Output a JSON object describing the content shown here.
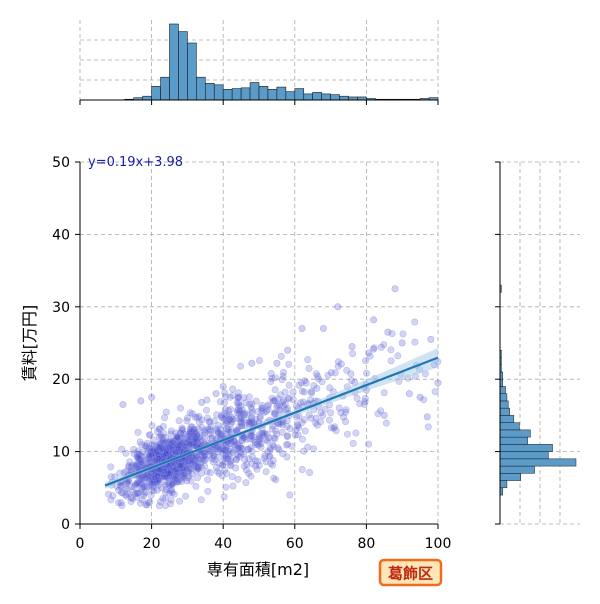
{
  "chart_data": {
    "type": "scatter",
    "xlabel": "専有面積[m2]",
    "ylabel": "賃料[万円]",
    "xlim": [
      0,
      100
    ],
    "ylim": [
      0,
      50
    ],
    "x_ticks": [
      0,
      20,
      40,
      60,
      80,
      100
    ],
    "y_ticks": [
      0,
      10,
      20,
      30,
      40,
      50
    ],
    "grid": true,
    "regression": {
      "label": "y=0.19x+3.98",
      "slope": 0.19,
      "intercept": 3.98,
      "x_range": [
        7,
        100
      ]
    },
    "badge": "葛飾区",
    "colors": {
      "points": "#3a3fc8",
      "points_edge": "#8a90e6",
      "regression_line": "#1f77b4",
      "regression_band": "#a9cce3",
      "histogram": "#5b9bc9",
      "histogram_edge": "#1c1c1c",
      "badge_fill": "#fde6b8",
      "badge_border": "#f26b1d",
      "badge_text": "#c0280f",
      "equation_text": "#1a1aa8"
    },
    "marginal_x_histogram": {
      "bin_start": 0,
      "bin_width": 2.5,
      "counts": [
        0,
        0,
        0,
        0,
        0,
        1,
        3,
        5,
        18,
        30,
        100,
        90,
        75,
        30,
        22,
        20,
        14,
        15,
        16,
        23,
        18,
        14,
        17,
        11,
        15,
        8,
        10,
        8,
        7,
        5,
        4,
        4,
        2,
        1,
        1,
        1,
        1,
        1,
        2,
        3
      ]
    },
    "marginal_y_histogram": {
      "bin_start": 0,
      "bin_width": 1,
      "counts": [
        0,
        0,
        0,
        0,
        2,
        5,
        15,
        25,
        55,
        35,
        38,
        20,
        22,
        14,
        10,
        7,
        6,
        5,
        4,
        2,
        2,
        1,
        1,
        1,
        0,
        0,
        0,
        0,
        0,
        0,
        0,
        0,
        1,
        0,
        0,
        0,
        0,
        0,
        0,
        0
      ]
    },
    "point_clusters": [
      {
        "n": 700,
        "x_mean": 24,
        "x_sd": 6,
        "noise_sd": 2.0
      },
      {
        "n": 420,
        "x_mean": 42,
        "x_sd": 10,
        "noise_sd": 3.0
      },
      {
        "n": 180,
        "x_mean": 66,
        "x_sd": 14,
        "noise_sd": 4.0
      }
    ],
    "outliers": [
      [
        88,
        32.5
      ],
      [
        72,
        30
      ],
      [
        82,
        28.2
      ],
      [
        68,
        27
      ],
      [
        76,
        24.5
      ],
      [
        86,
        26.5
      ],
      [
        90,
        25
      ],
      [
        99,
        22
      ],
      [
        97,
        14.8
      ],
      [
        95,
        17.5
      ],
      [
        100,
        19.5
      ],
      [
        98,
        25.5
      ],
      [
        55,
        22.2
      ],
      [
        48,
        22.2
      ],
      [
        17,
        17
      ],
      [
        20,
        17.5
      ],
      [
        12,
        16.5
      ],
      [
        62,
        27
      ],
      [
        38,
        18
      ],
      [
        40,
        19
      ],
      [
        34,
        16.8
      ],
      [
        58,
        24
      ],
      [
        80,
        18.5
      ],
      [
        85,
        15
      ],
      [
        92,
        18
      ]
    ]
  }
}
